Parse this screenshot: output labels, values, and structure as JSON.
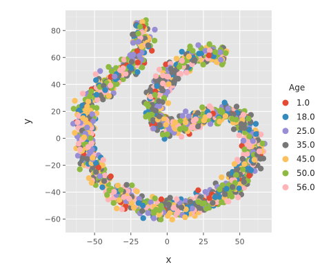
{
  "chart_data": {
    "type": "scatter",
    "xlabel": "x",
    "ylabel": "y",
    "xlim": [
      -70,
      72
    ],
    "ylim": [
      -70,
      95
    ],
    "x_ticks": [
      -50,
      -25,
      0,
      25,
      50
    ],
    "y_ticks": [
      -60,
      -40,
      -20,
      0,
      20,
      40,
      60,
      80
    ],
    "x_tick_labels": [
      "−50",
      "−25",
      "0",
      "25",
      "50"
    ],
    "y_tick_labels": [
      "−60",
      "−40",
      "−20",
      "0",
      "20",
      "40",
      "60",
      "80"
    ],
    "grid": true,
    "panel_background": "#e5e5e5",
    "legend": {
      "title": "Age",
      "placement": "right",
      "entries": [
        "1.0",
        "18.0",
        "25.0",
        "35.0",
        "45.0",
        "50.0",
        "56.0"
      ],
      "colors": [
        "#e24a33",
        "#348abd",
        "#988ed5",
        "#777777",
        "#fbc15e",
        "#8eba42",
        "#ffb5b8"
      ]
    },
    "curve": {
      "description_points": [
        [
          -20,
          88
        ],
        [
          -17,
          80
        ],
        [
          -16,
          72
        ],
        [
          -19,
          62
        ],
        [
          -24,
          55
        ],
        [
          -32,
          48
        ],
        [
          -40,
          43
        ],
        [
          -48,
          36
        ],
        [
          -54,
          26
        ],
        [
          -57,
          16
        ],
        [
          -57,
          6
        ],
        [
          -56,
          -4
        ],
        [
          -54,
          -14
        ],
        [
          -49,
          -24
        ],
        [
          -43,
          -33
        ],
        [
          -35,
          -41
        ],
        [
          -25,
          -47
        ],
        [
          -14,
          -51
        ],
        [
          -3,
          -53
        ],
        [
          9,
          -52
        ],
        [
          21,
          -49
        ],
        [
          32,
          -44
        ],
        [
          42,
          -38
        ],
        [
          50,
          -31
        ],
        [
          56,
          -22
        ],
        [
          59,
          -12
        ],
        [
          59,
          -2
        ],
        [
          57,
          8
        ],
        [
          52,
          14
        ],
        [
          44,
          17
        ],
        [
          34,
          18
        ],
        [
          24,
          16
        ],
        [
          14,
          11
        ],
        [
          5,
          8
        ],
        [
          -3,
          10
        ],
        [
          -9,
          16
        ],
        [
          -9,
          26
        ],
        [
          -5,
          38
        ],
        [
          2,
          48
        ],
        [
          10,
          56
        ],
        [
          20,
          61
        ],
        [
          30,
          63
        ],
        [
          40,
          61
        ]
      ],
      "band_width": 11,
      "point_count": 1800
    }
  }
}
